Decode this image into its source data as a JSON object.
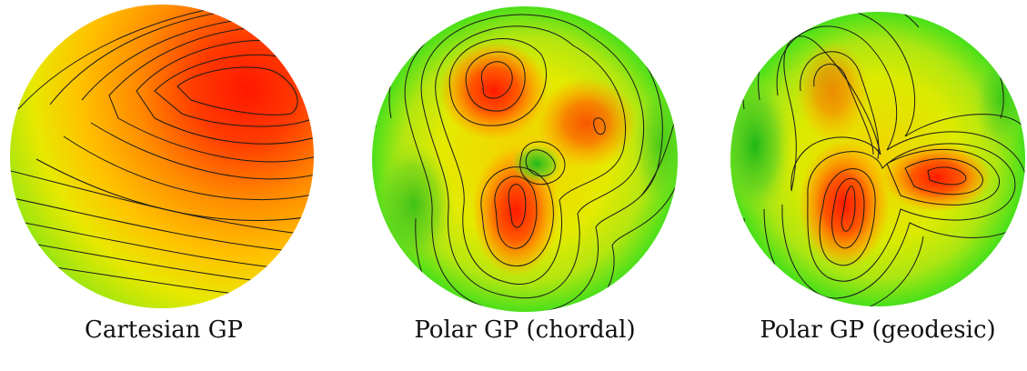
{
  "figure": {
    "panels": [
      {
        "caption": "Cartesian GP"
      },
      {
        "caption": "Polar GP (chordal)"
      },
      {
        "caption": "Polar GP (geodesic)"
      }
    ],
    "colors": {
      "low": "#22e01e",
      "mid": "#f0e800",
      "high": "#ff1a00",
      "contour": "#1a1a1a"
    }
  }
}
